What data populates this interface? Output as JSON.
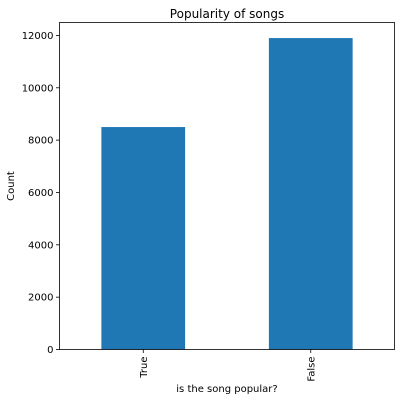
{
  "chart_data": {
    "type": "bar",
    "title": "Popularity of songs",
    "xlabel": "is the song popular?",
    "ylabel": "Count",
    "categories": [
      "True",
      "False"
    ],
    "values": [
      8500,
      11900
    ],
    "ylim": [
      0,
      12495
    ],
    "yticks": [
      "0",
      "2000",
      "4000",
      "6000",
      "8000",
      "10000",
      "12000"
    ],
    "grid": false,
    "legend": "none",
    "colors": {
      "bar": "#1f77b4",
      "axis": "#000000"
    }
  }
}
